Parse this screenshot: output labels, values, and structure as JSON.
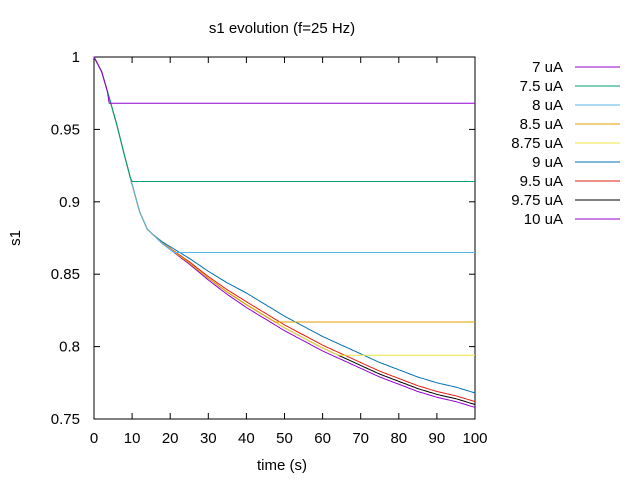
{
  "chart_data": {
    "type": "line",
    "title": "s1 evolution (f=25 Hz)",
    "xlabel": "time (s)",
    "ylabel": "s1",
    "xlim": [
      0,
      100
    ],
    "ylim": [
      0.75,
      1
    ],
    "xticks": [
      0,
      10,
      20,
      30,
      40,
      50,
      60,
      70,
      80,
      90,
      100
    ],
    "yticks": [
      0.75,
      0.8,
      0.85,
      0.9,
      0.95,
      1
    ],
    "ytick_labels": [
      "0.75",
      "0.8",
      "0.85",
      "0.9",
      "0.95",
      "1"
    ],
    "grid": false,
    "legend_position": "outside-right",
    "series": [
      {
        "name": "7 uA",
        "color": "#9400d3",
        "plateau": 0.968,
        "plateau_start": 4,
        "offset": 0.0
      },
      {
        "name": "7.5 uA",
        "color": "#009e73",
        "plateau": 0.914,
        "plateau_start": 10,
        "offset": 0.0
      },
      {
        "name": "8 uA",
        "color": "#56b4e9",
        "plateau": 0.865,
        "plateau_start": 24,
        "offset": 0.0
      },
      {
        "name": "8.5 uA",
        "color": "#e69f00",
        "plateau": 0.817,
        "plateau_start": 54,
        "offset": 0.002
      },
      {
        "name": "8.75 uA",
        "color": "#f0e442",
        "plateau": 0.794,
        "plateau_start": 69,
        "offset": 0.002
      },
      {
        "name": "9 uA",
        "color": "#0072b2",
        "plateau": null,
        "plateau_start": null,
        "offset": 0.01
      },
      {
        "name": "9.5 uA",
        "color": "#e51e10",
        "plateau": null,
        "plateau_start": null,
        "offset": 0.004
      },
      {
        "name": "9.75 uA",
        "color": "#000000",
        "plateau": null,
        "plateau_start": null,
        "offset": 0.002
      },
      {
        "name": "10 uA",
        "color": "#9400d3",
        "plateau": null,
        "plateau_start": null,
        "offset": 0.0
      }
    ],
    "base_curve": {
      "x": [
        0,
        2,
        4,
        6,
        8,
        10,
        12,
        14,
        16,
        18,
        20,
        25,
        30,
        35,
        40,
        45,
        50,
        55,
        60,
        65,
        70,
        75,
        80,
        85,
        90,
        95,
        100
      ],
      "y": [
        1.0,
        0.99,
        0.972,
        0.953,
        0.932,
        0.912,
        0.893,
        0.881,
        0.876,
        0.871,
        0.867,
        0.857,
        0.846,
        0.836,
        0.827,
        0.819,
        0.811,
        0.804,
        0.797,
        0.791,
        0.785,
        0.779,
        0.774,
        0.769,
        0.765,
        0.762,
        0.758
      ]
    }
  }
}
